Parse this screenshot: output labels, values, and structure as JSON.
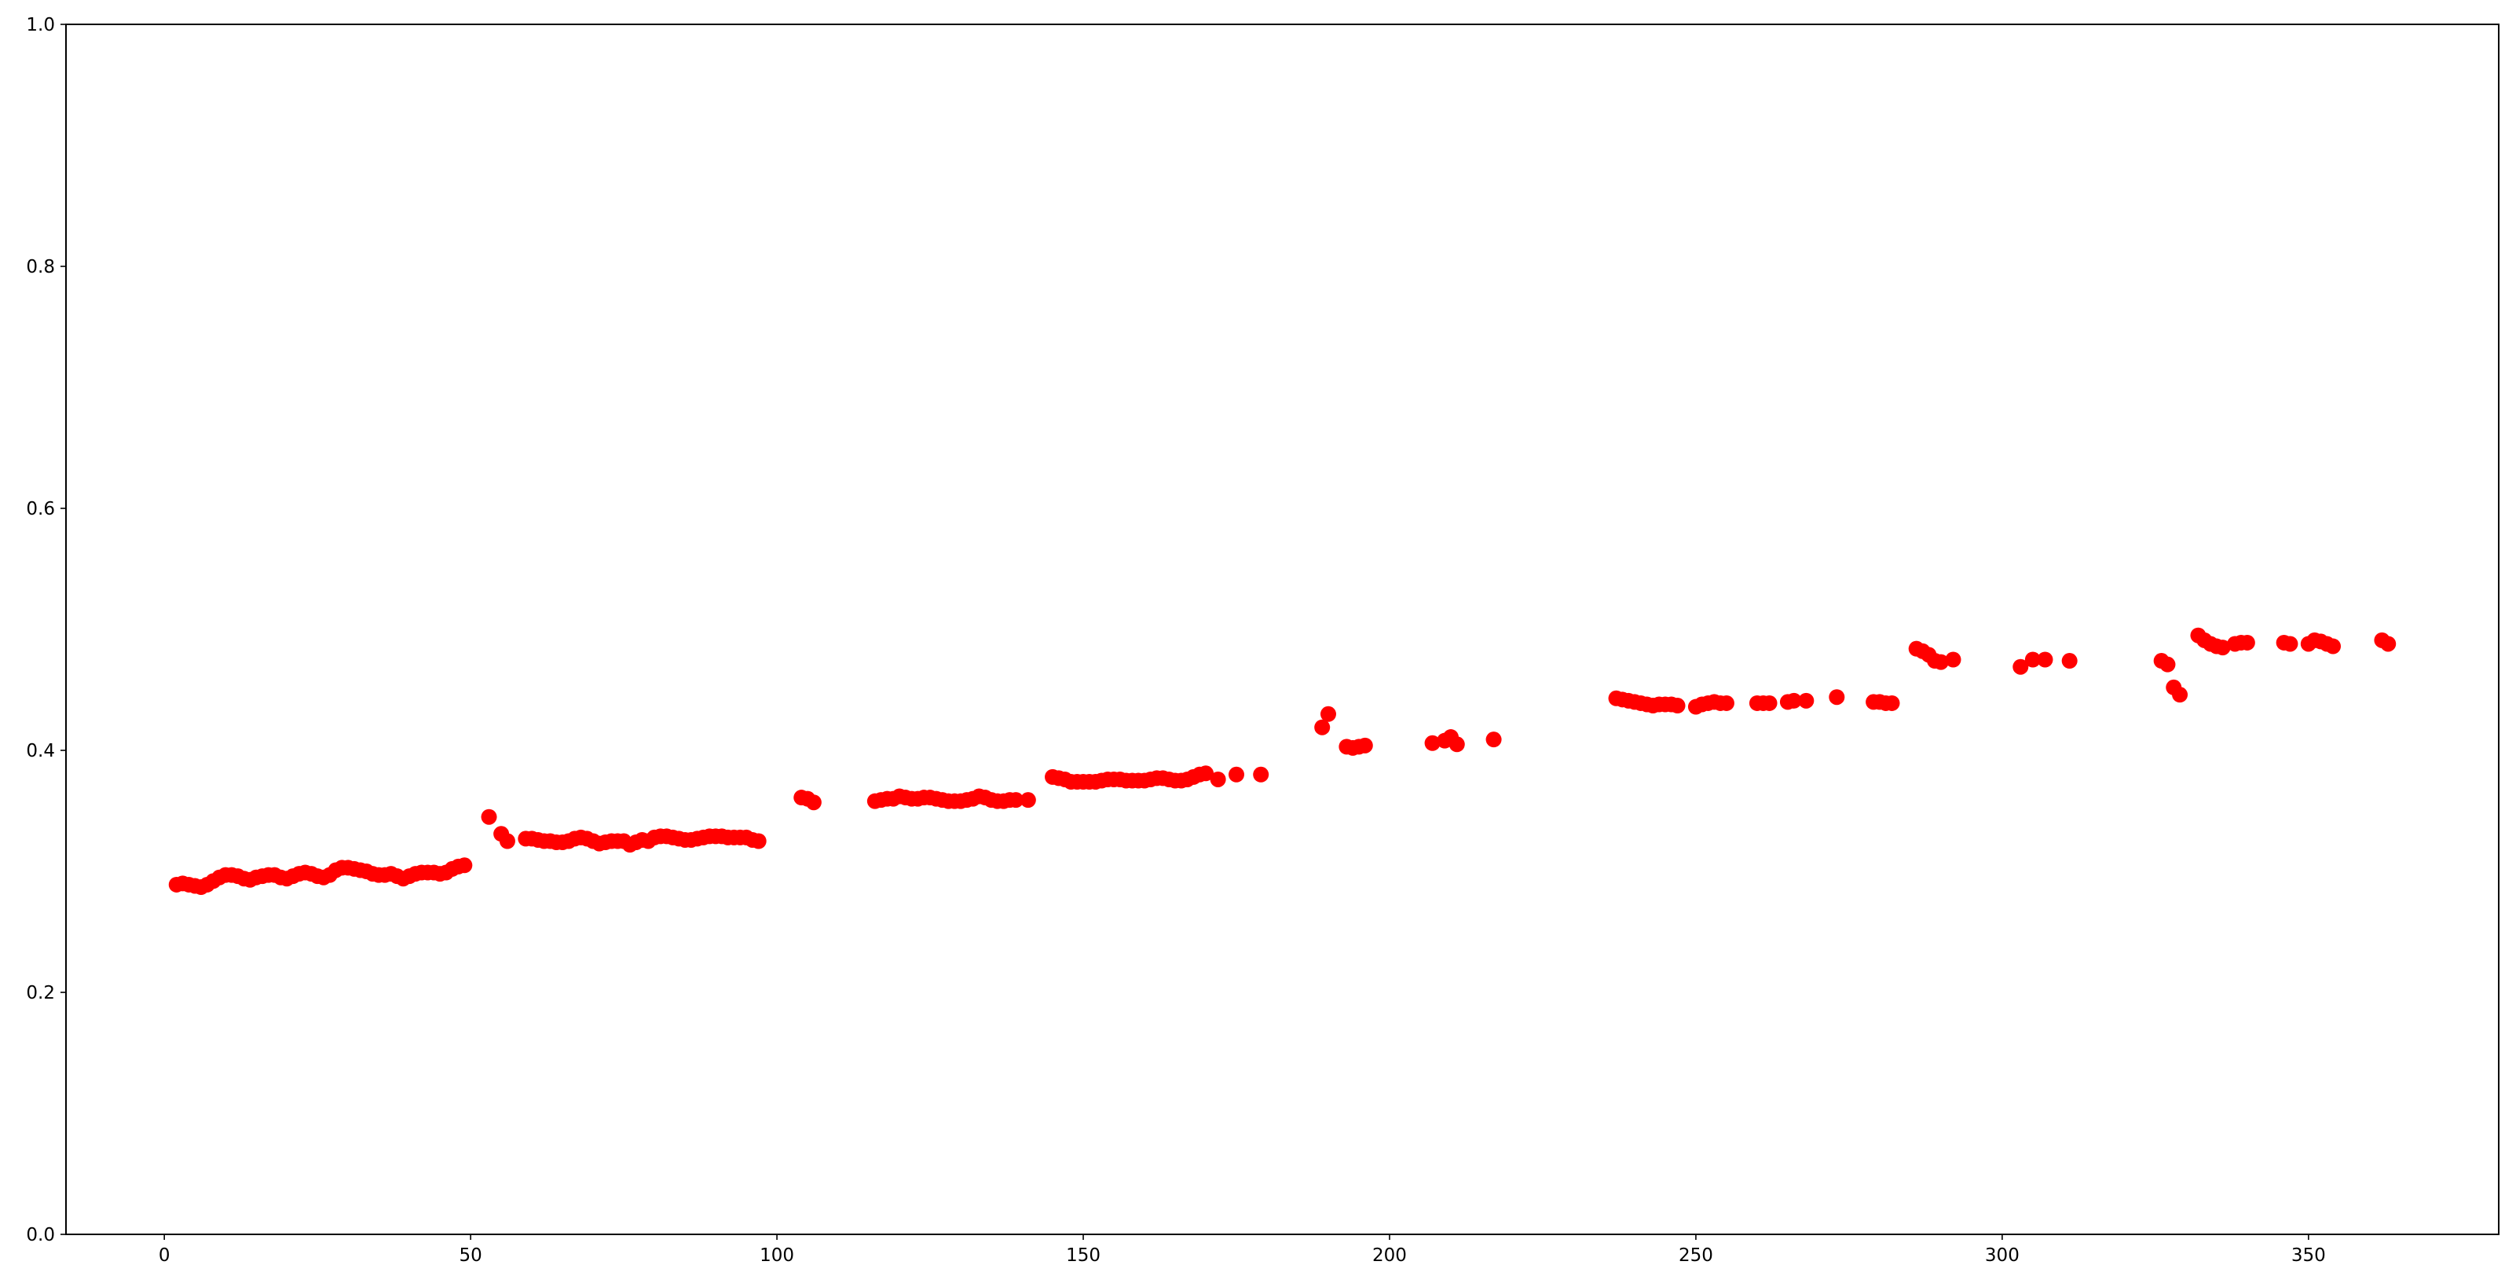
{
  "chart_data": {
    "type": "scatter",
    "title": "",
    "xlabel": "",
    "ylabel": "",
    "xlim": [
      -16.05,
      381.05
    ],
    "ylim": [
      0,
      1
    ],
    "xticks": [
      0,
      50,
      100,
      150,
      200,
      250,
      300,
      350
    ],
    "xtick_labels": [
      "0",
      "50",
      "100",
      "150",
      "200",
      "250",
      "300",
      "350"
    ],
    "yticks": [
      0,
      0.2,
      0.4,
      0.6,
      0.8,
      1.0
    ],
    "ytick_labels": [
      "0.0",
      "0.2",
      "0.4",
      "0.6",
      "0.8",
      "1.0"
    ],
    "grid": false,
    "marker_color": "#ff0000",
    "series": [
      {
        "x": [
          2,
          3,
          4,
          5,
          6,
          7,
          8,
          9,
          10,
          11,
          12,
          13,
          14,
          15,
          16,
          17,
          18,
          19,
          20,
          21,
          22,
          23,
          24,
          25,
          26,
          27,
          28,
          29,
          30,
          31,
          32,
          33,
          34,
          35,
          36,
          37,
          38,
          39,
          40,
          41,
          42,
          43,
          44,
          45,
          46,
          47,
          48,
          49,
          53,
          55,
          56,
          59,
          60,
          61,
          62,
          63,
          64,
          65,
          66,
          67,
          68,
          69,
          70,
          71,
          72,
          73,
          74,
          75,
          76,
          77,
          78,
          79,
          80,
          81,
          82,
          83,
          84,
          85,
          86,
          87,
          88,
          89,
          90,
          91,
          92,
          93,
          94,
          95,
          96,
          97,
          104,
          105,
          106,
          116,
          117,
          118,
          119,
          120,
          121,
          122,
          123,
          124,
          125,
          126,
          127,
          128,
          129,
          130,
          131,
          132,
          133,
          134,
          135,
          136,
          137,
          138,
          139,
          141,
          145,
          146,
          147,
          148,
          149,
          150,
          151,
          152,
          153,
          154,
          155,
          156,
          157,
          158,
          159,
          160,
          161,
          162,
          163,
          164,
          165,
          166,
          167,
          168,
          169,
          170,
          172,
          175,
          179,
          189,
          190,
          193,
          194,
          195,
          196,
          207,
          209,
          210,
          211,
          217,
          237,
          238,
          239,
          240,
          241,
          242,
          243,
          244,
          245,
          246,
          247,
          250,
          251,
          252,
          253,
          254,
          255,
          260,
          261,
          262,
          265,
          266,
          268,
          273,
          279,
          280,
          281,
          282,
          286,
          287,
          288,
          289,
          290,
          292,
          303,
          305,
          307,
          311,
          326,
          327,
          328,
          329,
          332,
          333,
          334,
          335,
          336,
          338,
          339,
          340,
          346,
          347,
          350,
          351,
          352,
          353,
          354,
          362,
          363
        ],
        "y": [
          0.289,
          0.29,
          0.289,
          0.288,
          0.287,
          0.289,
          0.292,
          0.295,
          0.297,
          0.297,
          0.296,
          0.294,
          0.293,
          0.295,
          0.296,
          0.297,
          0.297,
          0.295,
          0.294,
          0.296,
          0.298,
          0.299,
          0.298,
          0.296,
          0.295,
          0.297,
          0.301,
          0.303,
          0.303,
          0.302,
          0.301,
          0.3,
          0.298,
          0.297,
          0.297,
          0.298,
          0.296,
          0.294,
          0.296,
          0.298,
          0.299,
          0.299,
          0.299,
          0.298,
          0.299,
          0.302,
          0.304,
          0.305,
          0.345,
          0.331,
          0.325,
          0.327,
          0.327,
          0.326,
          0.325,
          0.325,
          0.324,
          0.324,
          0.325,
          0.327,
          0.328,
          0.327,
          0.325,
          0.323,
          0.324,
          0.325,
          0.325,
          0.325,
          0.322,
          0.324,
          0.326,
          0.325,
          0.328,
          0.329,
          0.329,
          0.328,
          0.327,
          0.326,
          0.326,
          0.327,
          0.328,
          0.329,
          0.329,
          0.329,
          0.328,
          0.328,
          0.328,
          0.328,
          0.326,
          0.325,
          0.361,
          0.36,
          0.357,
          0.358,
          0.359,
          0.36,
          0.36,
          0.362,
          0.361,
          0.36,
          0.36,
          0.361,
          0.361,
          0.36,
          0.359,
          0.358,
          0.358,
          0.358,
          0.359,
          0.36,
          0.362,
          0.361,
          0.359,
          0.358,
          0.358,
          0.359,
          0.359,
          0.359,
          0.378,
          0.377,
          0.376,
          0.374,
          0.374,
          0.374,
          0.374,
          0.374,
          0.375,
          0.376,
          0.376,
          0.376,
          0.375,
          0.375,
          0.375,
          0.375,
          0.376,
          0.377,
          0.377,
          0.376,
          0.375,
          0.375,
          0.376,
          0.378,
          0.38,
          0.381,
          0.376,
          0.38,
          0.38,
          0.419,
          0.43,
          0.403,
          0.402,
          0.403,
          0.404,
          0.406,
          0.408,
          0.411,
          0.405,
          0.409,
          0.443,
          0.442,
          0.441,
          0.44,
          0.439,
          0.438,
          0.437,
          0.438,
          0.438,
          0.438,
          0.437,
          0.436,
          0.438,
          0.439,
          0.44,
          0.439,
          0.439,
          0.439,
          0.439,
          0.439,
          0.44,
          0.441,
          0.441,
          0.444,
          0.44,
          0.44,
          0.439,
          0.439,
          0.484,
          0.482,
          0.479,
          0.474,
          0.473,
          0.475,
          0.469,
          0.475,
          0.475,
          0.474,
          0.474,
          0.471,
          0.452,
          0.446,
          0.495,
          0.491,
          0.488,
          0.486,
          0.485,
          0.488,
          0.489,
          0.489,
          0.489,
          0.488,
          0.488,
          0.491,
          0.49,
          0.488,
          0.486,
          0.491,
          0.488
        ]
      }
    ]
  }
}
